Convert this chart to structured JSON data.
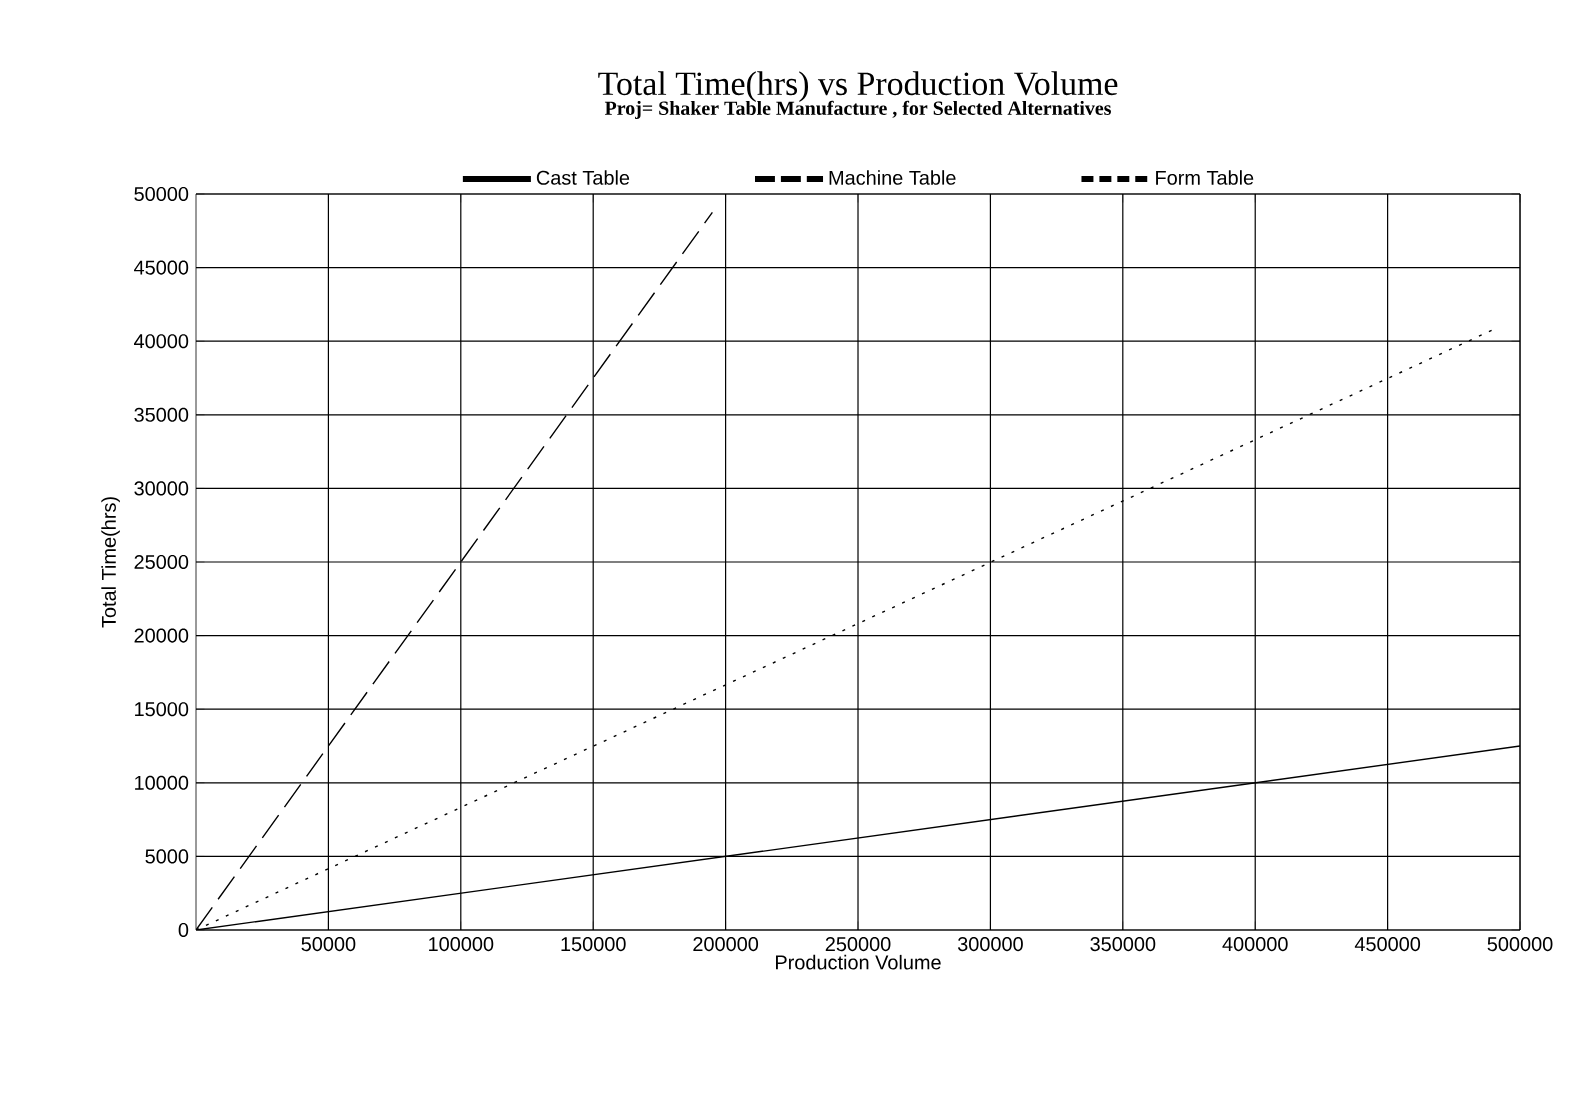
{
  "chart_data": {
    "type": "line",
    "title": "Total Time(hrs) vs Production Volume",
    "subtitle": "Proj= Shaker Table Manufacture , for Selected Alternatives",
    "xlabel": "Production Volume",
    "ylabel": "Total Time(hrs)",
    "series": [
      {
        "name": "Cast Table",
        "color": "#000000",
        "line_style": "solid",
        "x": [
          0,
          500000
        ],
        "values": [
          0,
          12500
        ]
      },
      {
        "name": "Machine Table",
        "color": "#000000",
        "line_style": "dashed",
        "x": [
          0,
          195000
        ],
        "values": [
          0,
          48750
        ]
      },
      {
        "name": "Form Table",
        "color": "#000000",
        "line_style": "dotted",
        "x": [
          0,
          490000
        ],
        "values": [
          0,
          40800
        ]
      }
    ],
    "xlim": [
      0,
      500000
    ],
    "ylim": [
      0,
      50000
    ],
    "xticks": [
      50000,
      100000,
      150000,
      200000,
      250000,
      300000,
      350000,
      400000,
      450000,
      500000
    ],
    "yticks": [
      0,
      5000,
      10000,
      15000,
      20000,
      25000,
      30000,
      35000,
      40000,
      45000,
      50000
    ],
    "grid": true,
    "legend": "top"
  }
}
